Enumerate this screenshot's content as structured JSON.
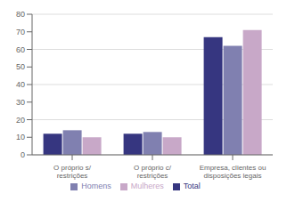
{
  "chart_data": {
    "type": "bar",
    "categories": [
      "O próprio s/\nrestrições",
      "O próprio c/\nrestrições",
      "Empresa, clientes ou\ndisposições legais"
    ],
    "series": [
      {
        "name": "Total",
        "color": "#363680",
        "values": [
          12,
          12,
          67
        ]
      },
      {
        "name": "Homens",
        "color": "#8080B0",
        "values": [
          14,
          13,
          62
        ]
      },
      {
        "name": "Mulheres",
        "color": "#C8A8C8",
        "values": [
          10,
          10,
          71
        ]
      }
    ],
    "ylim": [
      0,
      80
    ],
    "yticks": [
      0,
      10,
      20,
      30,
      40,
      50,
      60,
      70,
      80
    ],
    "grid": true,
    "legend": "bottom"
  }
}
